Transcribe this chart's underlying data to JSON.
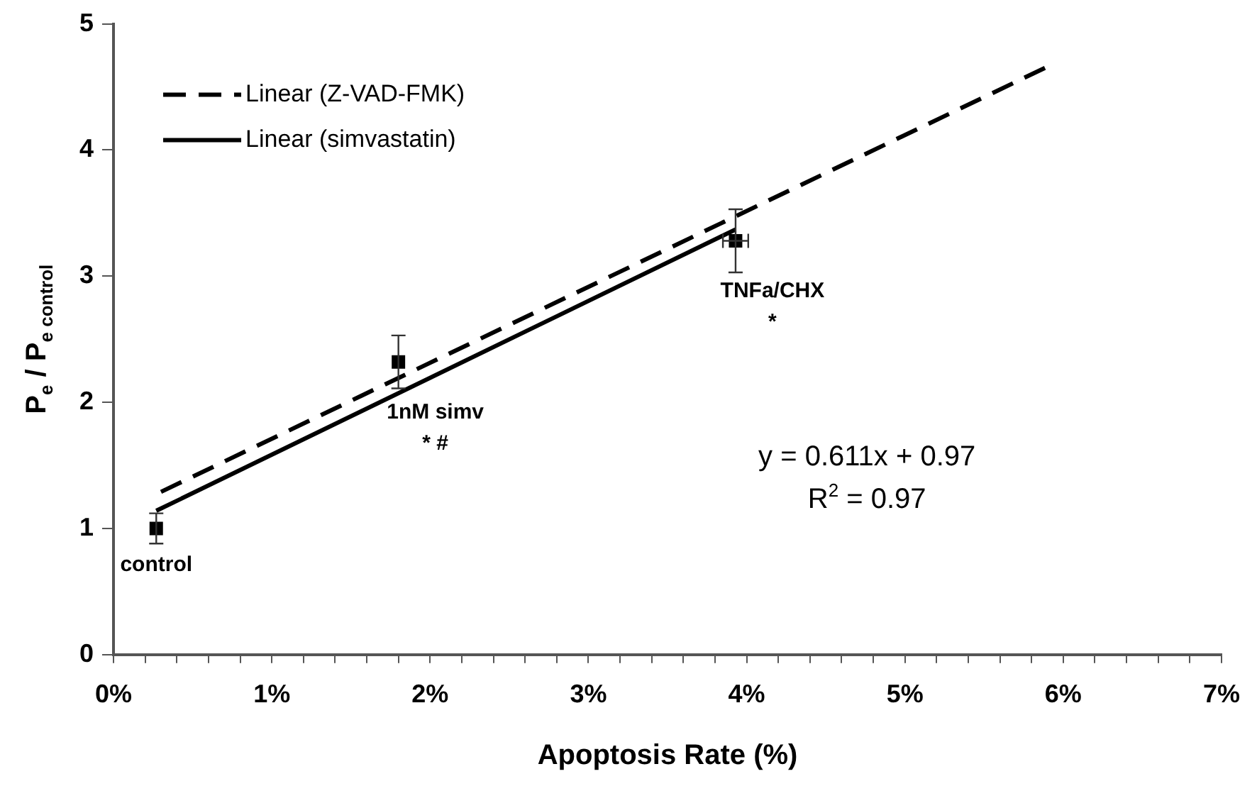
{
  "chart_data": {
    "type": "scatter",
    "xlabel": "Apoptosis Rate (%)",
    "ylabel": "P$_{e}$ / P$_{e control}$",
    "xlim": [
      0,
      7
    ],
    "ylim": [
      0,
      5
    ],
    "xticks": [
      {
        "value": 0,
        "label": "0%"
      },
      {
        "value": 0.2,
        "label": null
      },
      {
        "value": 0.4,
        "label": null
      },
      {
        "value": 0.6,
        "label": null
      },
      {
        "value": 0.8,
        "label": null
      },
      {
        "value": 1,
        "label": "1%"
      },
      {
        "value": 1.2,
        "label": null
      },
      {
        "value": 1.4,
        "label": null
      },
      {
        "value": 1.6,
        "label": null
      },
      {
        "value": 1.8,
        "label": null
      },
      {
        "value": 2,
        "label": "2%"
      },
      {
        "value": 2.2,
        "label": null
      },
      {
        "value": 2.4,
        "label": null
      },
      {
        "value": 2.6,
        "label": null
      },
      {
        "value": 2.8,
        "label": null
      },
      {
        "value": 3,
        "label": "3%"
      },
      {
        "value": 3.2,
        "label": null
      },
      {
        "value": 3.4,
        "label": null
      },
      {
        "value": 3.6,
        "label": null
      },
      {
        "value": 3.8,
        "label": null
      },
      {
        "value": 4,
        "label": "4%"
      },
      {
        "value": 4.2,
        "label": null
      },
      {
        "value": 4.4,
        "label": null
      },
      {
        "value": 4.6,
        "label": null
      },
      {
        "value": 4.8,
        "label": null
      },
      {
        "value": 5,
        "label": "5%"
      },
      {
        "value": 5.2,
        "label": null
      },
      {
        "value": 5.4,
        "label": null
      },
      {
        "value": 5.6,
        "label": null
      },
      {
        "value": 5.8,
        "label": null
      },
      {
        "value": 6,
        "label": "6%"
      },
      {
        "value": 6.2,
        "label": null
      },
      {
        "value": 6.4,
        "label": null
      },
      {
        "value": 6.6,
        "label": null
      },
      {
        "value": 6.8,
        "label": null
      },
      {
        "value": 7,
        "label": "7%"
      }
    ],
    "yticks": [
      0,
      1,
      2,
      3,
      4,
      5
    ],
    "grid": false,
    "legend": "top left",
    "series": [
      {
        "marker": "square",
        "color": "#000000",
        "x": [
          0.27,
          1.8,
          3.93
        ],
        "values": [
          1.0,
          2.32,
          3.28
        ],
        "errors": [
          0.12,
          0.21,
          0.25
        ],
        "xerrors": [
          null,
          null,
          0.08
        ]
      },
      {
        "type": "line",
        "name": "Linear (Z-VAD-FMK)",
        "color": "#000000",
        "line_style": "dashed",
        "x": [
          0.3,
          5.9
        ],
        "values": [
          1.29,
          4.66
        ]
      },
      {
        "type": "line",
        "name": "Linear (simvastatin)",
        "color": "#000000",
        "line_style": "solid",
        "x": [
          0.27,
          3.93
        ],
        "values": [
          1.14,
          3.37
        ]
      }
    ],
    "annotations": [
      {
        "text": "control",
        "x": 0.27,
        "y": 1.0
      },
      {
        "text": "1nM simv",
        "x": 1.8,
        "y": 2.32
      },
      "* #",
      {
        "text": "TNFa/CHX",
        "x": 3.93,
        "y": 3.28
      },
      "*",
      "y = 0.611x + 0.97",
      "R$^{2}$ = 0.97"
    ]
  }
}
